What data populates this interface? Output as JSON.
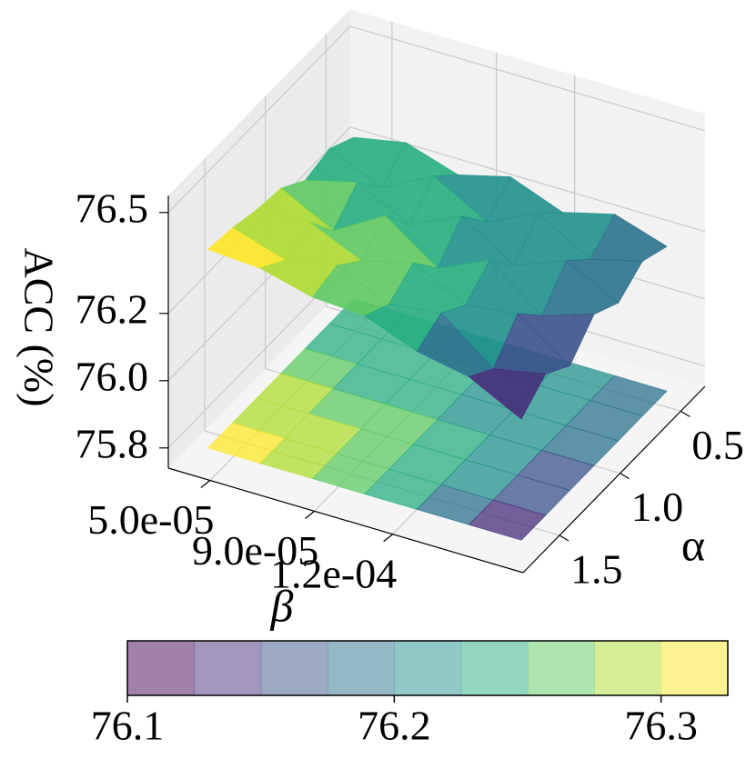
{
  "chart_data": {
    "type": "surface3d",
    "x_label": "β",
    "y_label": "α",
    "z_label": "ACC (%)",
    "x": [
      4e-05,
      6e-05,
      8e-05,
      0.0001,
      0.00012,
      0.00014,
      0.00016
    ],
    "y": [
      0.4,
      0.6,
      0.8,
      1.0,
      1.2,
      1.4,
      1.6
    ],
    "z": [
      [
        76.22,
        76.25,
        76.2,
        76.24,
        76.18,
        76.22,
        76.17
      ],
      [
        76.26,
        76.19,
        76.27,
        76.18,
        76.25,
        76.16,
        76.2
      ],
      [
        76.24,
        76.28,
        76.2,
        76.27,
        76.17,
        76.23,
        76.15
      ],
      [
        76.29,
        76.21,
        76.3,
        76.19,
        76.26,
        76.14,
        76.19
      ],
      [
        76.3,
        76.31,
        76.24,
        76.28,
        76.2,
        76.22,
        76.11
      ],
      [
        76.32,
        76.27,
        76.3,
        76.23,
        76.25,
        76.13,
        76.16
      ],
      [
        76.33,
        76.32,
        76.28,
        76.27,
        76.21,
        76.18,
        76.1
      ]
    ],
    "xlim": [
      3.4e-05,
      0.00017
    ],
    "ylim": [
      0.3,
      1.8
    ],
    "zlim": [
      75.74,
      76.55
    ],
    "xticks": [
      {
        "value": 5e-05,
        "label": "5.0e-05"
      },
      {
        "value": 9e-05,
        "label": "9.0e-05"
      },
      {
        "value": 0.00012,
        "label": "1.2e-04"
      }
    ],
    "yticks": [
      0.5,
      {
        "value": 1,
        "label": "1.0"
      },
      1.5
    ],
    "zticks": [
      75.8,
      {
        "value": 76,
        "label": "76.0"
      },
      76.2,
      76.5
    ],
    "colorbar_lim": [
      76.1,
      76.325
    ],
    "colorbar_ticks": [
      76.1,
      76.2,
      76.3
    ],
    "colormap": [
      "#440154",
      "#472d7b",
      "#3b528b",
      "#2c728e",
      "#21918c",
      "#28ae80",
      "#5ec962",
      "#addc30",
      "#fde725"
    ],
    "grid": true
  }
}
